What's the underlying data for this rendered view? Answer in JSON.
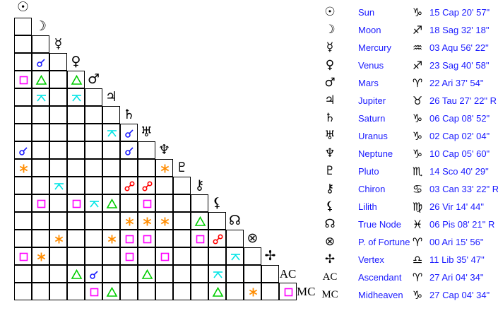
{
  "planets": [
    {
      "name": "Sun",
      "glyph": "☉",
      "sign_glyph": "♑",
      "position": "15 Cap 20' 57\""
    },
    {
      "name": "Moon",
      "glyph": "☽",
      "sign_glyph": "♐",
      "position": "18 Sag 32' 18\""
    },
    {
      "name": "Mercury",
      "glyph": "☿",
      "sign_glyph": "♒",
      "position": "03 Aqu 56' 22\""
    },
    {
      "name": "Venus",
      "glyph": "♀",
      "sign_glyph": "♐",
      "position": "23 Sag 40' 58\""
    },
    {
      "name": "Mars",
      "glyph": "♂",
      "sign_glyph": "♈",
      "position": "22 Ari 37' 54\""
    },
    {
      "name": "Jupiter",
      "glyph": "♃",
      "sign_glyph": "♉",
      "position": "26 Tau 27' 22\" R"
    },
    {
      "name": "Saturn",
      "glyph": "♄",
      "sign_glyph": "♑",
      "position": "06 Cap 08' 52\""
    },
    {
      "name": "Uranus",
      "glyph": "♅",
      "sign_glyph": "♑",
      "position": "02 Cap 02' 04\""
    },
    {
      "name": "Neptune",
      "glyph": "♆",
      "sign_glyph": "♑",
      "position": "10 Cap 05' 60\""
    },
    {
      "name": "Pluto",
      "glyph": "♇",
      "sign_glyph": "♏",
      "position": "14 Sco 40' 29\""
    },
    {
      "name": "Chiron",
      "glyph": "⚷",
      "sign_glyph": "♋",
      "position": "03 Can 33' 22\" R"
    },
    {
      "name": "Lilith",
      "glyph": "⚸",
      "sign_glyph": "♍",
      "position": "26 Vir 14' 44\""
    },
    {
      "name": "True Node",
      "glyph": "☊",
      "sign_glyph": "♓",
      "position": "06 Pis 08' 21\" R"
    },
    {
      "name": "P. of Fortune",
      "glyph": "⊗",
      "sign_glyph": "♈",
      "position": "00 Ari 15' 56\""
    },
    {
      "name": "Vertex",
      "glyph": "✢",
      "sign_glyph": "♎",
      "position": "11 Lib 35' 47\""
    },
    {
      "name": "Ascendant",
      "glyph": "AC",
      "sign_glyph": "♈",
      "position": "27 Ari 04' 34\""
    },
    {
      "name": "Midheaven",
      "glyph": "MC",
      "sign_glyph": "♑",
      "position": "27 Cap 04' 34\""
    }
  ],
  "aspect_colors": {
    "conjunction": "#1a1aff",
    "opposition": "#ff0000",
    "trine": "#00cc00",
    "square": "#ff00ff",
    "sextile": "#ff8c00",
    "quincunx": "#00e5e5"
  },
  "aspects": [
    {
      "p1": "Venus",
      "p2": "Moon",
      "type": "conjunction"
    },
    {
      "p1": "Mars",
      "p2": "Sun",
      "type": "square"
    },
    {
      "p1": "Mars",
      "p2": "Moon",
      "type": "trine"
    },
    {
      "p1": "Mars",
      "p2": "Venus",
      "type": "trine"
    },
    {
      "p1": "Jupiter",
      "p2": "Moon",
      "type": "quincunx"
    },
    {
      "p1": "Jupiter",
      "p2": "Venus",
      "type": "quincunx"
    },
    {
      "p1": "Uranus",
      "p2": "Jupiter",
      "type": "quincunx"
    },
    {
      "p1": "Uranus",
      "p2": "Saturn",
      "type": "conjunction"
    },
    {
      "p1": "Neptune",
      "p2": "Sun",
      "type": "conjunction"
    },
    {
      "p1": "Neptune",
      "p2": "Saturn",
      "type": "conjunction"
    },
    {
      "p1": "Pluto",
      "p2": "Sun",
      "type": "sextile"
    },
    {
      "p1": "Pluto",
      "p2": "Neptune",
      "type": "sextile"
    },
    {
      "p1": "Chiron",
      "p2": "Mercury",
      "type": "quincunx"
    },
    {
      "p1": "Chiron",
      "p2": "Saturn",
      "type": "opposition"
    },
    {
      "p1": "Chiron",
      "p2": "Uranus",
      "type": "opposition"
    },
    {
      "p1": "Lilith",
      "p2": "Moon",
      "type": "square"
    },
    {
      "p1": "Lilith",
      "p2": "Venus",
      "type": "square"
    },
    {
      "p1": "Lilith",
      "p2": "Mars",
      "type": "quincunx"
    },
    {
      "p1": "Lilith",
      "p2": "Jupiter",
      "type": "trine"
    },
    {
      "p1": "Lilith",
      "p2": "Uranus",
      "type": "square"
    },
    {
      "p1": "True Node",
      "p2": "Saturn",
      "type": "sextile"
    },
    {
      "p1": "True Node",
      "p2": "Uranus",
      "type": "sextile"
    },
    {
      "p1": "True Node",
      "p2": "Neptune",
      "type": "sextile"
    },
    {
      "p1": "True Node",
      "p2": "Chiron",
      "type": "trine"
    },
    {
      "p1": "P. of Fortune",
      "p2": "Mercury",
      "type": "sextile"
    },
    {
      "p1": "P. of Fortune",
      "p2": "Jupiter",
      "type": "sextile"
    },
    {
      "p1": "P. of Fortune",
      "p2": "Saturn",
      "type": "square"
    },
    {
      "p1": "P. of Fortune",
      "p2": "Uranus",
      "type": "square"
    },
    {
      "p1": "P. of Fortune",
      "p2": "Chiron",
      "type": "square"
    },
    {
      "p1": "P. of Fortune",
      "p2": "Lilith",
      "type": "opposition"
    },
    {
      "p1": "Vertex",
      "p2": "Sun",
      "type": "square"
    },
    {
      "p1": "Vertex",
      "p2": "Moon",
      "type": "sextile"
    },
    {
      "p1": "Vertex",
      "p2": "Saturn",
      "type": "square"
    },
    {
      "p1": "Vertex",
      "p2": "Neptune",
      "type": "square"
    },
    {
      "p1": "Vertex",
      "p2": "True Node",
      "type": "quincunx"
    },
    {
      "p1": "Ascendant",
      "p2": "Venus",
      "type": "trine"
    },
    {
      "p1": "Ascendant",
      "p2": "Mars",
      "type": "conjunction"
    },
    {
      "p1": "Ascendant",
      "p2": "Uranus",
      "type": "trine"
    },
    {
      "p1": "Ascendant",
      "p2": "Lilith",
      "type": "quincunx"
    },
    {
      "p1": "Midheaven",
      "p2": "Mars",
      "type": "square"
    },
    {
      "p1": "Midheaven",
      "p2": "Jupiter",
      "type": "trine"
    },
    {
      "p1": "Midheaven",
      "p2": "Lilith",
      "type": "trine"
    },
    {
      "p1": "Midheaven",
      "p2": "P. of Fortune",
      "type": "sextile"
    },
    {
      "p1": "Midheaven",
      "p2": "Ascendant",
      "type": "square"
    }
  ]
}
